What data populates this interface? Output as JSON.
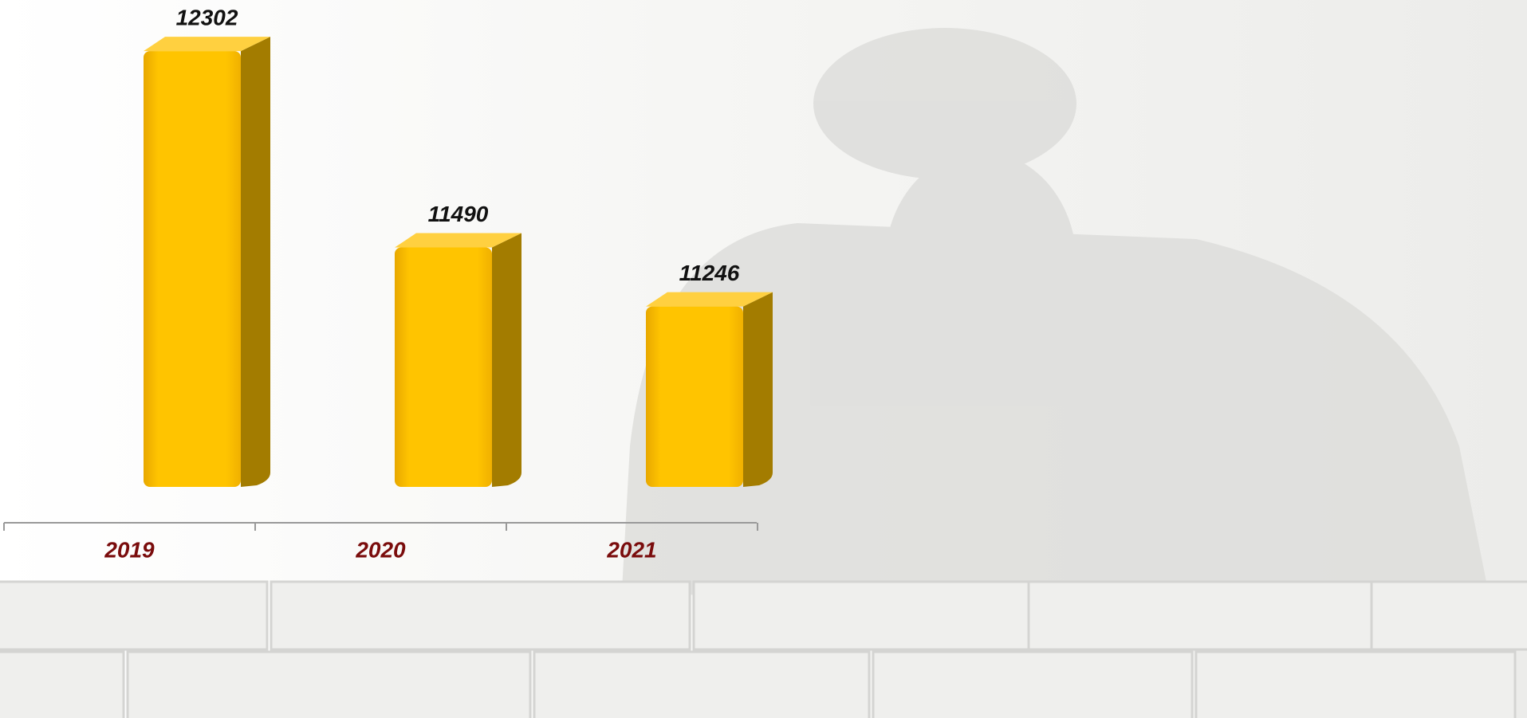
{
  "chart_data": {
    "type": "bar3d",
    "categories": [
      "2019",
      "2020",
      "2021"
    ],
    "values": [
      12302,
      11490,
      11246
    ],
    "color": "#ffc000",
    "ylim": [
      10500,
      12500
    ]
  }
}
